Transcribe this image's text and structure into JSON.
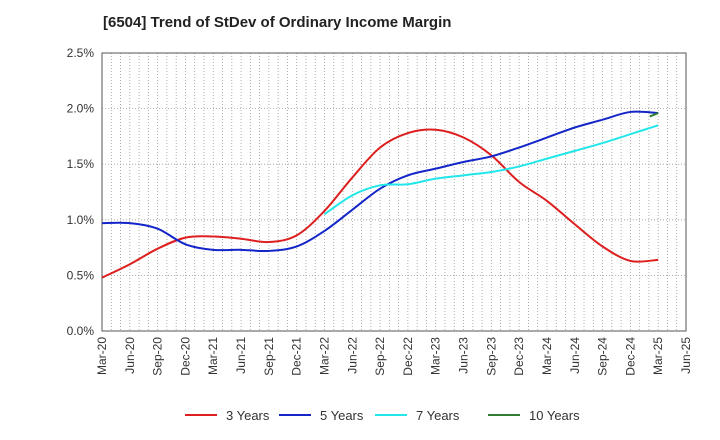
{
  "chart_data": {
    "type": "line",
    "title": "[6504]  Trend of StDev of Ordinary Income Margin",
    "xlabel": "",
    "ylabel": "",
    "ylim": [
      0,
      2.5
    ],
    "y_ticks": [
      "0.0%",
      "0.5%",
      "1.0%",
      "1.5%",
      "2.0%",
      "2.5%"
    ],
    "x_ticks": [
      "Mar-20",
      "Jun-20",
      "Sep-20",
      "Dec-20",
      "Mar-21",
      "Jun-21",
      "Sep-21",
      "Dec-21",
      "Mar-22",
      "Jun-22",
      "Sep-22",
      "Dec-22",
      "Mar-23",
      "Jun-23",
      "Sep-23",
      "Dec-23",
      "Mar-24",
      "Jun-24",
      "Sep-24",
      "Dec-24",
      "Mar-25",
      "Jun-25"
    ],
    "grid": true,
    "legend_position": "bottom",
    "series": [
      {
        "name": "3 Years",
        "color": "#dd1f1f",
        "points": [
          [
            0,
            0.48
          ],
          [
            1,
            0.6
          ],
          [
            2,
            0.74
          ],
          [
            3,
            0.84
          ],
          [
            4,
            0.85
          ],
          [
            5,
            0.83
          ],
          [
            6,
            0.8
          ],
          [
            7,
            0.86
          ],
          [
            8,
            1.08
          ],
          [
            9,
            1.38
          ],
          [
            10,
            1.65
          ],
          [
            11,
            1.78
          ],
          [
            12,
            1.81
          ],
          [
            13,
            1.74
          ],
          [
            14,
            1.58
          ],
          [
            15,
            1.34
          ],
          [
            16,
            1.17
          ],
          [
            17,
            0.96
          ],
          [
            18,
            0.76
          ],
          [
            19,
            0.63
          ],
          [
            20,
            0.64
          ]
        ]
      },
      {
        "name": "5 Years",
        "color": "#1426c8",
        "points": [
          [
            0,
            0.97
          ],
          [
            1,
            0.97
          ],
          [
            2,
            0.92
          ],
          [
            3,
            0.78
          ],
          [
            4,
            0.73
          ],
          [
            5,
            0.73
          ],
          [
            6,
            0.72
          ],
          [
            7,
            0.76
          ],
          [
            8,
            0.9
          ],
          [
            9,
            1.09
          ],
          [
            10,
            1.28
          ],
          [
            11,
            1.4
          ],
          [
            12,
            1.46
          ],
          [
            13,
            1.52
          ],
          [
            14,
            1.57
          ],
          [
            15,
            1.65
          ],
          [
            16,
            1.74
          ],
          [
            17,
            1.83
          ],
          [
            18,
            1.9
          ],
          [
            19,
            1.97
          ],
          [
            20,
            1.96
          ]
        ]
      },
      {
        "name": "7 Years",
        "color": "#22e6ea",
        "points": [
          [
            8,
            1.05
          ],
          [
            9,
            1.22
          ],
          [
            10,
            1.31
          ],
          [
            11,
            1.32
          ],
          [
            12,
            1.37
          ],
          [
            13,
            1.4
          ],
          [
            14,
            1.43
          ],
          [
            15,
            1.48
          ],
          [
            16,
            1.55
          ],
          [
            17,
            1.62
          ],
          [
            18,
            1.69
          ],
          [
            19,
            1.77
          ],
          [
            20,
            1.85
          ]
        ]
      },
      {
        "name": "10 Years",
        "color": "#2e7d32",
        "points": [
          [
            19.7,
            1.93
          ],
          [
            20,
            1.96
          ]
        ]
      }
    ]
  }
}
